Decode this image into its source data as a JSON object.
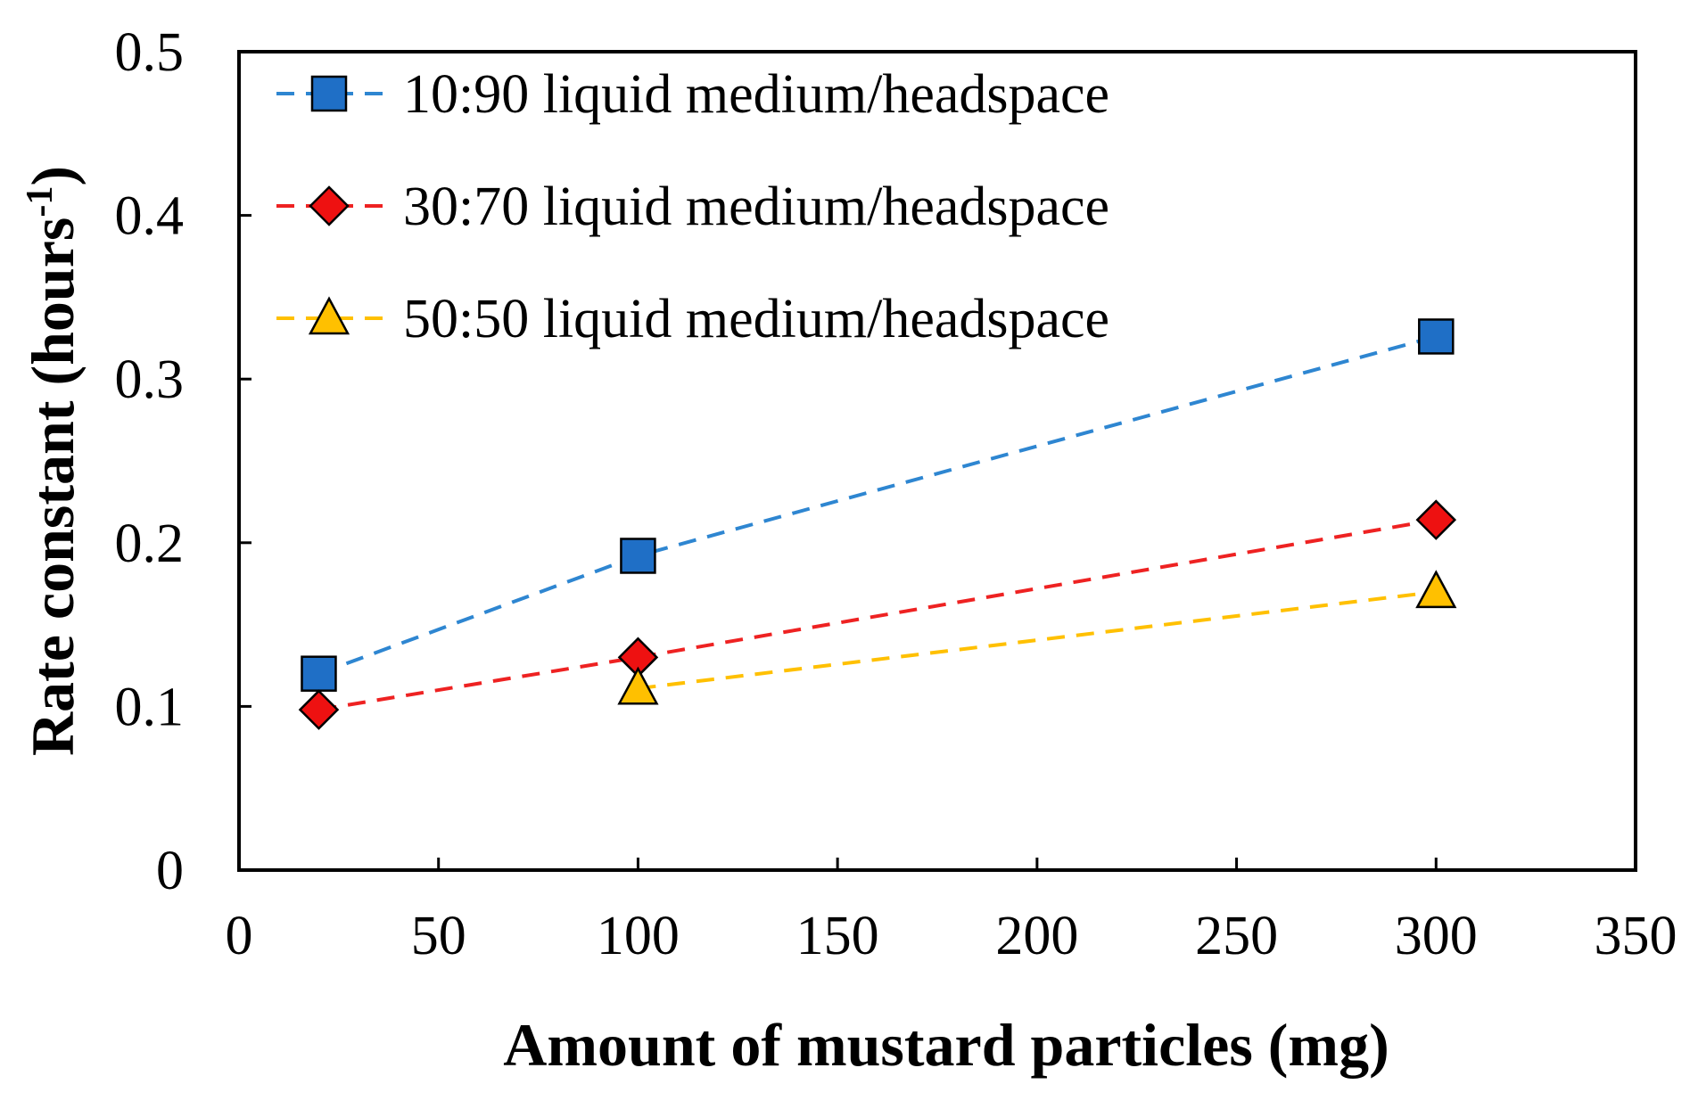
{
  "chart_data": {
    "type": "scatter",
    "title": "",
    "xlabel": "Amount of mustard particles (mg)",
    "ylabel_main": "Rate constant (hours",
    "ylabel_sup": "-1",
    "ylabel_close": ")",
    "xlim": [
      0,
      350
    ],
    "ylim": [
      0,
      0.5
    ],
    "xticks": [
      0,
      50,
      100,
      150,
      200,
      250,
      300,
      350
    ],
    "xtick_labels": [
      "0",
      "50",
      "100",
      "150",
      "200",
      "250",
      "300",
      "350"
    ],
    "yticks": [
      0,
      0.1,
      0.2,
      0.3,
      0.4,
      0.5
    ],
    "ytick_labels": [
      "0",
      "0.1",
      "0.2",
      "0.3",
      "0.4",
      "0.5"
    ],
    "grid": false,
    "legend_position": "top-left",
    "series": [
      {
        "name": "10:90 liquid medium/headspace",
        "marker": "square",
        "color": "#1f6fc6",
        "line_color": "#2e86d1",
        "x": [
          20,
          100,
          300
        ],
        "y": [
          0.12,
          0.192,
          0.326
        ]
      },
      {
        "name": "30:70 liquid medium/headspace",
        "marker": "diamond",
        "color": "#ee1111",
        "line_color": "#ee2222",
        "x": [
          20,
          100,
          300
        ],
        "y": [
          0.098,
          0.13,
          0.214
        ]
      },
      {
        "name": "50:50 liquid medium/headspace",
        "marker": "triangle",
        "color": "#ffc000",
        "line_color": "#ffc000",
        "x": [
          100,
          300
        ],
        "y": [
          0.111,
          0.17
        ]
      }
    ]
  }
}
